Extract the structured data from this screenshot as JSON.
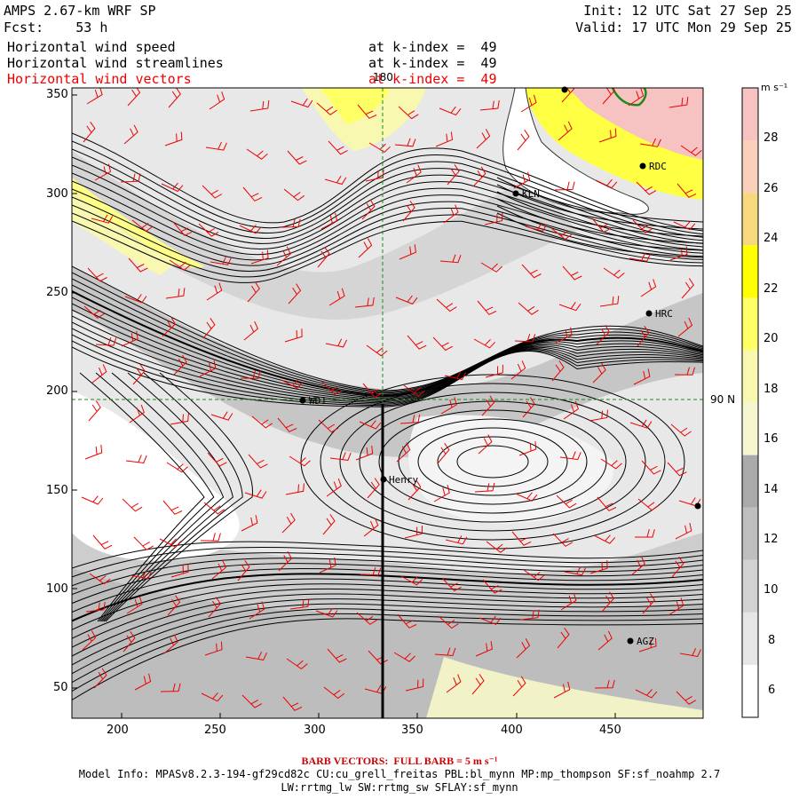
{
  "header": {
    "title": "AMPS 2.67-km WRF SP",
    "forecast": "Fcst:    53 h",
    "init": "Init: 12 UTC Sat 27 Sep 25",
    "valid": "Valid: 17 UTC Mon 29 Sep 25"
  },
  "fields": [
    {
      "name": "Horizontal wind speed",
      "level": "at k-index =  49",
      "color": "#000000"
    },
    {
      "name": "Horizontal wind streamlines",
      "level": "at k-index =  49",
      "color": "#000000"
    },
    {
      "name": "Horizontal wind vectors",
      "level": "at k-index =  49",
      "color": "#e00000"
    }
  ],
  "axes": {
    "x_ticks": [
      "200",
      "250",
      "300",
      "350",
      "400",
      "450"
    ],
    "y_ticks": [
      "350",
      "300",
      "250",
      "200",
      "150",
      "100",
      "50"
    ],
    "grid_labels": {
      "lon": "180",
      "lat": "90 N"
    }
  },
  "stations": [
    "RDC",
    "KLN",
    "HRC",
    "WD1",
    "Henry",
    "AGZ"
  ],
  "colorbar": {
    "unit": "m s⁻¹",
    "labels": [
      "28",
      "26",
      "24",
      "22",
      "20",
      "18",
      "16",
      "14",
      "12",
      "10",
      "8",
      "6"
    ],
    "colors": [
      "#ffffff",
      "#e6e6e6",
      "#d2d2d2",
      "#bebebe",
      "#aaaaaa",
      "#f6f6d0",
      "#f8f8b0",
      "#ffff66",
      "#ffff00",
      "#f6d97c",
      "#fbd0bb",
      "#f6c2c2"
    ]
  },
  "footer": {
    "barb_note": "BARB VECTORS:  FULL BARB = 5 m s⁻¹",
    "model_info": "Model Info: MPASv8.2.3-194-gf29cd82c CU:cu_grell_freitas PBL:bl_mynn MP:mp_thompson SF:sf_noahmp 2.7",
    "model_info2": "LW:rrtmg_lw SW:rrtmg_sw SFLAY:sf_mynn"
  }
}
